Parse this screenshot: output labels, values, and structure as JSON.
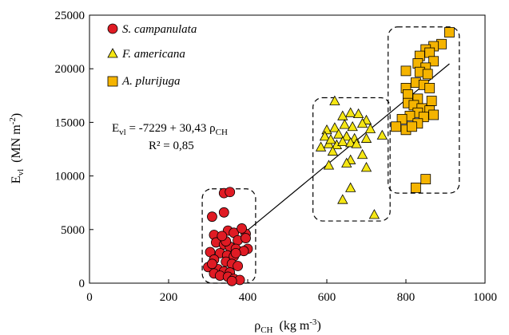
{
  "chart_data": {
    "type": "scatter",
    "title": "",
    "xlim": [
      0,
      1000
    ],
    "ylim": [
      0,
      25000
    ],
    "x_ticks": [
      "0",
      "200",
      "400",
      "600",
      "800",
      "1000"
    ],
    "y_ticks": [
      "0",
      "5000",
      "10000",
      "15000",
      "20000",
      "25000"
    ],
    "xlabel": {
      "base": "ρ",
      "sub": "CH",
      "rest": "  (kg m",
      "sup": "-3",
      "end": ")"
    },
    "ylabel": {
      "base": "E",
      "sub": "vl",
      "rest": "  (MN m",
      "sup": "-2",
      "end": ")"
    },
    "legend_position": "top-left",
    "grid": false,
    "series": [
      {
        "name": "S. campanulata",
        "marker": "circle",
        "color": "#e01b24",
        "points": [
          [
            340,
            8400
          ],
          [
            355,
            8500
          ],
          [
            340,
            6600
          ],
          [
            310,
            6200
          ],
          [
            315,
            4500
          ],
          [
            350,
            4900
          ],
          [
            365,
            4700
          ],
          [
            335,
            4300
          ],
          [
            375,
            4000
          ],
          [
            395,
            4600
          ],
          [
            320,
            3800
          ],
          [
            340,
            3600
          ],
          [
            355,
            3400
          ],
          [
            370,
            3200
          ],
          [
            400,
            3200
          ],
          [
            305,
            2900
          ],
          [
            330,
            2800
          ],
          [
            348,
            2600
          ],
          [
            365,
            2500
          ],
          [
            390,
            3000
          ],
          [
            315,
            2200
          ],
          [
            345,
            2000
          ],
          [
            360,
            1800
          ],
          [
            375,
            1600
          ],
          [
            300,
            1500
          ],
          [
            325,
            1300
          ],
          [
            340,
            1100
          ],
          [
            355,
            1000
          ],
          [
            315,
            900
          ],
          [
            330,
            700
          ],
          [
            350,
            600
          ],
          [
            365,
            400
          ],
          [
            380,
            300
          ],
          [
            360,
            200
          ],
          [
            395,
            4200
          ],
          [
            385,
            5100
          ],
          [
            345,
            3900
          ],
          [
            310,
            1800
          ],
          [
            370,
            2800
          ],
          [
            335,
            4400
          ]
        ]
      },
      {
        "name": "F. americana",
        "marker": "triangle",
        "color": "#f5e614",
        "points": [
          [
            620,
            17000
          ],
          [
            660,
            15900
          ],
          [
            640,
            15600
          ],
          [
            680,
            15800
          ],
          [
            700,
            15200
          ],
          [
            600,
            14300
          ],
          [
            620,
            14500
          ],
          [
            645,
            14800
          ],
          [
            665,
            14600
          ],
          [
            690,
            14900
          ],
          [
            710,
            14400
          ],
          [
            595,
            13700
          ],
          [
            630,
            13900
          ],
          [
            650,
            13700
          ],
          [
            670,
            13500
          ],
          [
            700,
            13500
          ],
          [
            740,
            13800
          ],
          [
            585,
            12700
          ],
          [
            605,
            13000
          ],
          [
            625,
            12900
          ],
          [
            640,
            13200
          ],
          [
            660,
            13100
          ],
          [
            615,
            12300
          ],
          [
            690,
            12000
          ],
          [
            605,
            11000
          ],
          [
            660,
            11500
          ],
          [
            650,
            11200
          ],
          [
            700,
            10800
          ],
          [
            660,
            8900
          ],
          [
            640,
            7800
          ],
          [
            720,
            6400
          ],
          [
            610,
            13400
          ],
          [
            675,
            13000
          ]
        ]
      },
      {
        "name": "A. plurijuga",
        "marker": "square",
        "color": "#f5b400",
        "points": [
          [
            910,
            23400
          ],
          [
            890,
            22300
          ],
          [
            870,
            22100
          ],
          [
            850,
            21800
          ],
          [
            860,
            21500
          ],
          [
            835,
            21200
          ],
          [
            870,
            20700
          ],
          [
            830,
            20500
          ],
          [
            850,
            20100
          ],
          [
            835,
            19700
          ],
          [
            800,
            19800
          ],
          [
            855,
            19500
          ],
          [
            825,
            18700
          ],
          [
            845,
            18500
          ],
          [
            800,
            18200
          ],
          [
            860,
            18200
          ],
          [
            805,
            17600
          ],
          [
            830,
            17200
          ],
          [
            865,
            17000
          ],
          [
            805,
            16800
          ],
          [
            820,
            16600
          ],
          [
            840,
            16300
          ],
          [
            860,
            16100
          ],
          [
            830,
            15900
          ],
          [
            810,
            15600
          ],
          [
            845,
            15500
          ],
          [
            790,
            15300
          ],
          [
            775,
            14600
          ],
          [
            800,
            14300
          ],
          [
            830,
            14900
          ],
          [
            815,
            14600
          ],
          [
            870,
            15700
          ],
          [
            850,
            9700
          ],
          [
            825,
            8900
          ]
        ]
      }
    ],
    "trendline": {
      "intercept": -7229,
      "slope": 30.43,
      "x_range": [
        400,
        910
      ]
    },
    "equation": {
      "base": "E",
      "sub1": "vl",
      "rest": " = -7229 + 30,43 ρ",
      "sub2": "CH"
    },
    "r_squared": "R² = 0,85",
    "group_boxes": [
      {
        "x": [
          285,
          420
        ],
        "y": [
          0,
          8800
        ]
      },
      {
        "x": [
          565,
          760
        ],
        "y": [
          5800,
          17300
        ]
      },
      {
        "x": [
          755,
          935
        ],
        "y": [
          8400,
          23900
        ]
      }
    ]
  }
}
